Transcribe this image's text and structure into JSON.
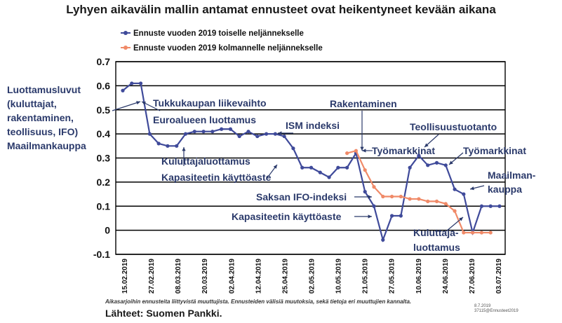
{
  "title": "Lyhyen aikavälin mallin antamat ennusteet ovat heikentyneet kevään aikana",
  "footnote": "Aikasarjoihin ennusteita liittyvistä muuttujista. Ennusteiden välisiä muutoksia, sekä tietoja eri muuttujien kannalta.",
  "source": "Lähteet: Suomen Pankki.",
  "code": [
    "8.7.2019",
    "37115@Ennusteet2019"
  ],
  "colors": {
    "series1": "#3f4a9a",
    "series2": "#f08a68",
    "text": "#2b3a6b"
  },
  "chart_data": {
    "type": "line",
    "ylim": [
      -0.1,
      0.7
    ],
    "yticks": [
      "0.7",
      "0.6",
      "0.5",
      "0.4",
      "0.3",
      "0.2",
      "0.1",
      "0",
      "-0.1"
    ],
    "xticks": [
      "15.02.2019",
      "27.02.2019",
      "08.03.2019",
      "20.03.2019",
      "02.04.2019",
      "12.04.2019",
      "25.04.2019",
      "02.05.2019",
      "10.05.2019",
      "21.05.2019",
      "27.05.2019",
      "10.06.2019",
      "24.06.2019",
      "27.06.2019",
      "03.07.2019"
    ],
    "grid": true,
    "legend_position": "top-left",
    "series": [
      {
        "name": "Ennuste vuoden 2019 toiselle neljännekselle",
        "color": "#3f4a9a",
        "values": [
          0.58,
          0.61,
          0.61,
          0.4,
          0.36,
          0.35,
          0.35,
          0.4,
          0.41,
          0.41,
          0.41,
          0.42,
          0.42,
          0.39,
          0.41,
          0.39,
          0.4,
          0.4,
          0.39,
          0.34,
          0.26,
          0.26,
          0.24,
          0.22,
          0.26,
          0.26,
          0.32,
          0.16,
          0.1,
          -0.04,
          0.06,
          0.06,
          0.26,
          0.31,
          0.27,
          0.28,
          0.27,
          0.17,
          0.15,
          -0.01,
          0.1,
          0.1,
          0.1
        ]
      },
      {
        "name": "Ennuste vuoden 2019 kolmannelle neljännekselle",
        "color": "#f08a68",
        "start_index": 25,
        "values": [
          0.32,
          0.33,
          0.25,
          0.18,
          0.14,
          0.14,
          0.14,
          0.13,
          0.13,
          0.12,
          0.12,
          0.11,
          0.08,
          -0.01,
          -0.01,
          -0.01,
          -0.01
        ]
      }
    ],
    "annotations": [
      "Luottamusluvut (kuluttajat, rakentaminen, teollisuus, IFO) Maailmankauppa",
      "Tukkukaupan liikevaihto",
      "Euroalueen luottamus",
      "ISM indeksi",
      "Kuluttajaluottamus",
      "Kapasiteetin käyttöaste",
      "Rakentaminen",
      "Työmarkkinat",
      "Teollisuustuotanto",
      "Työmarkkinat",
      "Maailman-kauppa",
      "Saksan IFO-indeksi",
      "Kapasiteetin käyttöaste",
      "Kuluttaja-luottamus"
    ]
  }
}
